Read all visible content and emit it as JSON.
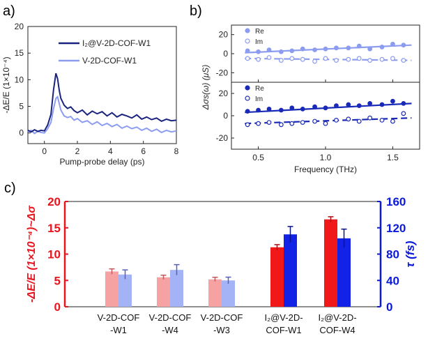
{
  "panels": {
    "a": "a)",
    "b": "b)",
    "c": "c)"
  },
  "chart_data": [
    {
      "panel": "a",
      "type": "line",
      "xlabel": "Pump-probe delay (ps)",
      "ylabel": "-ΔE/E (1×10⁻⁴)",
      "xlim": [
        -1,
        8
      ],
      "ylim": [
        -2,
        20
      ],
      "xticks": [
        "0",
        "2",
        "4",
        "6",
        "8"
      ],
      "yticks": [
        "0",
        "5",
        "10",
        "15",
        "20"
      ],
      "grid": false,
      "legend_position": "top-right",
      "series": [
        {
          "name": "I₂@V-2D-COF-W1",
          "color": "#1a237e",
          "x": [
            -1.0,
            -0.8,
            -0.6,
            -0.4,
            -0.2,
            0.0,
            0.2,
            0.4,
            0.55,
            0.7,
            0.8,
            0.9,
            1.0,
            1.2,
            1.4,
            1.6,
            1.8,
            2.0,
            2.3,
            2.6,
            2.9,
            3.2,
            3.5,
            3.8,
            4.1,
            4.4,
            4.7,
            5.0,
            5.3,
            5.6,
            5.9,
            6.2,
            6.5,
            6.8,
            7.1,
            7.4,
            7.7,
            8.0
          ],
          "y": [
            0.5,
            0.2,
            0.6,
            0.3,
            0.5,
            0.4,
            1.5,
            3.5,
            8.0,
            11.2,
            10.2,
            8.0,
            6.5,
            5.2,
            4.6,
            4.9,
            4.2,
            3.8,
            4.3,
            3.4,
            4.1,
            3.6,
            4.0,
            3.2,
            3.8,
            3.0,
            3.5,
            3.2,
            2.8,
            3.4,
            2.6,
            3.0,
            2.5,
            2.8,
            2.2,
            2.6,
            2.3,
            2.4
          ]
        },
        {
          "name": "V-2D-COF-W1",
          "color": "#8c9cf0",
          "x": [
            -1.0,
            -0.8,
            -0.6,
            -0.4,
            -0.2,
            0.0,
            0.2,
            0.4,
            0.55,
            0.7,
            0.8,
            0.9,
            1.0,
            1.2,
            1.4,
            1.6,
            1.8,
            2.0,
            2.3,
            2.6,
            2.9,
            3.2,
            3.5,
            3.8,
            4.1,
            4.4,
            4.7,
            5.0,
            5.3,
            5.6,
            5.9,
            6.2,
            6.5,
            6.8,
            7.1,
            7.4,
            7.7,
            8.0
          ],
          "y": [
            0.2,
            0.5,
            -0.1,
            0.3,
            0.1,
            0.0,
            0.8,
            2.0,
            4.5,
            6.5,
            6.8,
            5.5,
            4.3,
            3.2,
            2.9,
            3.1,
            2.4,
            2.7,
            2.0,
            2.3,
            1.6,
            2.1,
            1.4,
            1.8,
            1.2,
            1.6,
            0.9,
            1.3,
            0.8,
            1.1,
            0.5,
            0.9,
            0.3,
            0.7,
            0.1,
            0.5,
            0.2,
            0.4
          ]
        }
      ]
    },
    {
      "panel": "b",
      "type": "scatter",
      "xlabel": "Frequency (THz)",
      "ylabel": "Δσs(ω) (μS)",
      "xlim": [
        0.3,
        1.7
      ],
      "xticks": [
        "0.5",
        "1.0",
        "1.5"
      ],
      "ylim": [
        -30,
        30
      ],
      "yticks": [
        "-20",
        "0",
        "20"
      ],
      "subplots": [
        {
          "name": "top",
          "legend": [
            "Re",
            "Im"
          ],
          "color": "#8c9cf0",
          "series": [
            {
              "name": "Re",
              "marker": "filled",
              "x": [
                0.42,
                0.5,
                0.58,
                0.67,
                0.75,
                0.83,
                0.92,
                1.0,
                1.08,
                1.17,
                1.25,
                1.33,
                1.42,
                1.5,
                1.58
              ],
              "y": [
                3,
                2,
                4,
                2,
                3,
                5,
                4,
                5,
                6,
                6,
                8,
                5,
                7,
                10,
                9
              ],
              "fit": [
                1,
                9
              ]
            },
            {
              "name": "Im",
              "marker": "open",
              "x": [
                0.42,
                0.5,
                0.58,
                0.67,
                0.75,
                0.83,
                0.92,
                1.0,
                1.08,
                1.17,
                1.25,
                1.33,
                1.42,
                1.5,
                1.58
              ],
              "y": [
                -5,
                -6,
                -4,
                -7,
                -5,
                -6,
                -8,
                -5,
                -7,
                -6,
                -5,
                -7,
                -6,
                -5,
                -7
              ],
              "fit": [
                -5,
                -7
              ]
            }
          ]
        },
        {
          "name": "bottom",
          "legend": [
            "Re",
            "Im"
          ],
          "color": "#1a2ab8",
          "series": [
            {
              "name": "Re",
              "marker": "filled",
              "x": [
                0.42,
                0.5,
                0.58,
                0.67,
                0.75,
                0.83,
                0.92,
                1.0,
                1.08,
                1.17,
                1.25,
                1.33,
                1.42,
                1.5,
                1.58
              ],
              "y": [
                4,
                5,
                6,
                5,
                7,
                6,
                8,
                7,
                9,
                10,
                9,
                11,
                10,
                13,
                11
              ],
              "fit": [
                3,
                11
              ]
            },
            {
              "name": "Im",
              "marker": "open",
              "x": [
                0.42,
                0.5,
                0.58,
                0.67,
                0.75,
                0.83,
                0.92,
                1.0,
                1.08,
                1.17,
                1.25,
                1.33,
                1.42,
                1.5,
                1.58
              ],
              "y": [
                -8,
                -7,
                -6,
                -8,
                -7,
                -6,
                -5,
                -7,
                -4,
                -3,
                -5,
                -2,
                -4,
                -5,
                2
              ],
              "fit": [
                -7,
                -2
              ]
            }
          ]
        }
      ]
    },
    {
      "panel": "c",
      "type": "bar",
      "ylabel": "-ΔE/E (1×10⁻⁴)~Δσ",
      "y2label": "τ (fs)",
      "ylim": [
        0,
        20
      ],
      "y2lim": [
        0,
        160
      ],
      "yticks": [
        "0",
        "5",
        "10",
        "15",
        "20"
      ],
      "y2ticks": [
        "0",
        "40",
        "80",
        "120",
        "160"
      ],
      "categories": [
        [
          "V-2D-COF",
          "-W1"
        ],
        [
          "V-2D-COF",
          "-W4"
        ],
        [
          "V-2D-COF",
          "-W3"
        ],
        [
          "I₂@V-2D-",
          "COF-W1"
        ],
        [
          "I₂@V-2D-",
          "COF-W4"
        ]
      ],
      "left_axis_color": "#e8141e",
      "right_axis_color": "#0a1ad8",
      "series": [
        {
          "name": "-ΔE/E",
          "axis": "left",
          "colors": [
            "#f6a2a2",
            "#f6a2a2",
            "#f6a2a2",
            "#f01818",
            "#f01818"
          ],
          "values": [
            6.7,
            5.6,
            5.2,
            11.3,
            16.6
          ],
          "errors": [
            0.5,
            0.4,
            0.4,
            0.5,
            0.5
          ]
        },
        {
          "name": "τ",
          "axis": "right",
          "colors": [
            "#a4b2f6",
            "#a4b2f6",
            "#a4b2f6",
            "#1222e6",
            "#1222e6"
          ],
          "values": [
            49,
            56,
            40,
            110,
            104
          ],
          "errors": [
            7,
            8,
            5,
            12,
            14
          ]
        }
      ]
    }
  ]
}
